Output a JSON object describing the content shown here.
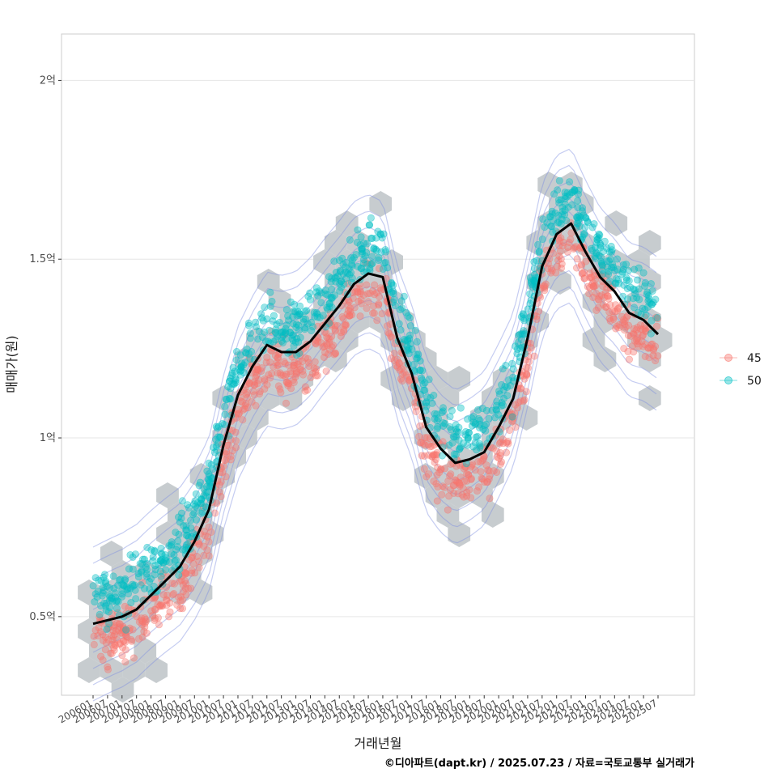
{
  "chart_data": {
    "type": "scatter",
    "xlabel": "거래년월",
    "ylabel": "매매가(원)",
    "caption": "©디아파트(dapt.kr) / 2025.07.23 / 자료=국토교통부 실거래가",
    "x_ticks": [
      "200601",
      "200607",
      "200701",
      "200707",
      "200801",
      "200807",
      "200901",
      "200907",
      "201001",
      "201007",
      "201101",
      "201107",
      "201201",
      "201207",
      "201301",
      "201307",
      "201401",
      "201407",
      "201501",
      "201507",
      "201601",
      "201607",
      "201701",
      "201707",
      "201801",
      "201807",
      "201901",
      "201907",
      "202001",
      "202007",
      "202101",
      "202107",
      "202201",
      "202207",
      "202301",
      "202307",
      "202401",
      "202407",
      "202501",
      "202507"
    ],
    "y_ticks": [
      {
        "value": 50000000,
        "label": "0.5억"
      },
      {
        "value": 100000000,
        "label": "1억"
      },
      {
        "value": 150000000,
        "label": "1.5억"
      },
      {
        "value": 200000000,
        "label": "2억"
      }
    ],
    "ylim": [
      28000000,
      213000000
    ],
    "grid": true,
    "legend_position": "right",
    "series": [
      {
        "name": "45",
        "color": "#F8766D"
      },
      {
        "name": "50",
        "color": "#00BFC4"
      }
    ],
    "trend_line": {
      "color": "#000000",
      "points": [
        [
          "200601",
          48
        ],
        [
          "200607",
          49
        ],
        [
          "200701",
          50
        ],
        [
          "200707",
          52
        ],
        [
          "200801",
          56
        ],
        [
          "200807",
          60
        ],
        [
          "200901",
          64
        ],
        [
          "200907",
          71
        ],
        [
          "201001",
          80
        ],
        [
          "201007",
          98
        ],
        [
          "201101",
          112
        ],
        [
          "201107",
          120
        ],
        [
          "201201",
          126
        ],
        [
          "201207",
          124
        ],
        [
          "201301",
          124
        ],
        [
          "201307",
          127
        ],
        [
          "201401",
          132
        ],
        [
          "201407",
          137
        ],
        [
          "201501",
          143
        ],
        [
          "201507",
          146
        ],
        [
          "201601",
          145
        ],
        [
          "201607",
          128
        ],
        [
          "201701",
          118
        ],
        [
          "201707",
          103
        ],
        [
          "201801",
          97
        ],
        [
          "201807",
          93
        ],
        [
          "201901",
          94
        ],
        [
          "201907",
          96
        ],
        [
          "202001",
          103
        ],
        [
          "202007",
          111
        ],
        [
          "202101",
          128
        ],
        [
          "202107",
          148
        ],
        [
          "202201",
          157
        ],
        [
          "202207",
          160
        ],
        [
          "202301",
          152
        ],
        [
          "202307",
          145
        ],
        [
          "202401",
          141
        ],
        [
          "202407",
          135
        ],
        [
          "202501",
          133
        ],
        [
          "202507",
          129
        ]
      ]
    },
    "density_centers": [
      {
        "series": "45",
        "points": [
          [
            "200701",
            45
          ],
          [
            "201401",
            125
          ],
          [
            "201907",
            88
          ],
          [
            "202207",
            140
          ]
        ]
      },
      {
        "series": "50",
        "points": [
          [
            "200701",
            62
          ],
          [
            "201301",
            150
          ],
          [
            "201907",
            105
          ],
          [
            "202207",
            168
          ]
        ]
      }
    ]
  }
}
